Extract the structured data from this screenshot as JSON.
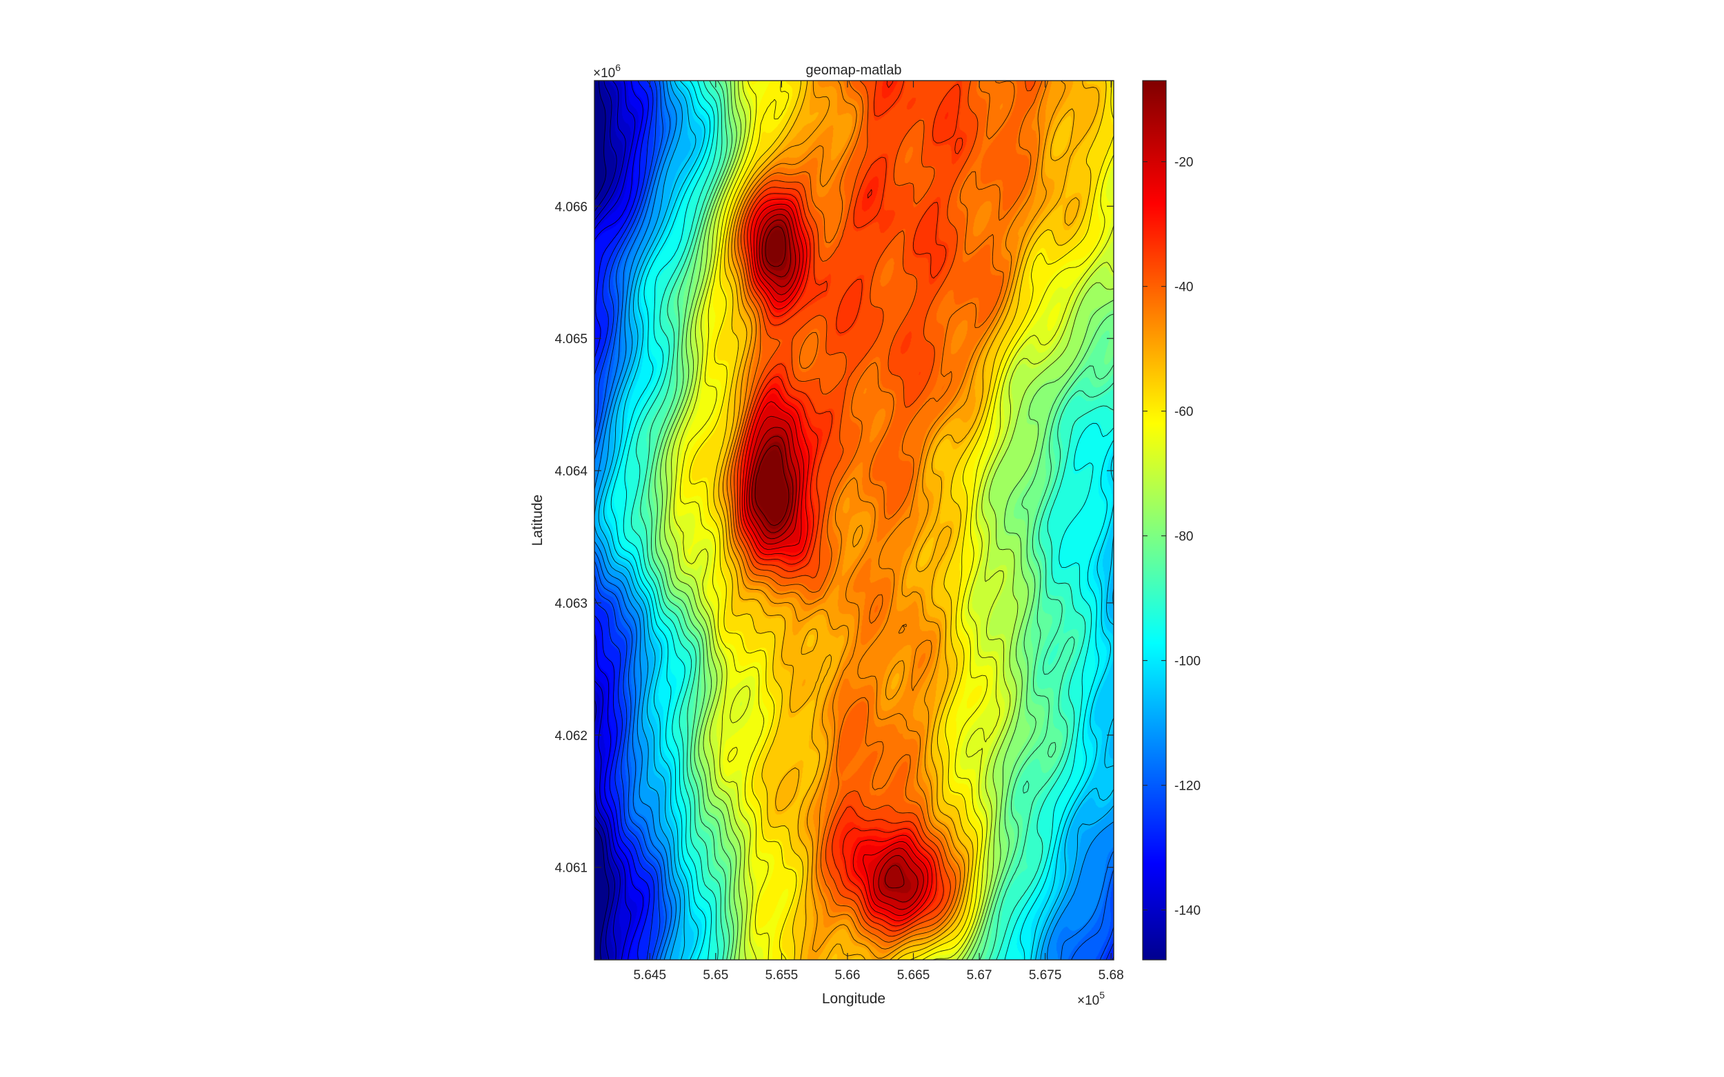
{
  "title": "geomap-matlab",
  "x_axis": {
    "label": "Longitude",
    "exponent_label": "×10",
    "exponent": "5",
    "ticks": [
      5.645,
      5.65,
      5.655,
      5.66,
      5.665,
      5.67,
      5.675,
      5.68
    ],
    "tick_labels": [
      "5.645",
      "5.65",
      "5.655",
      "5.66",
      "5.665",
      "5.67",
      "5.675",
      "5.68"
    ],
    "range": [
      5.6408,
      5.6802
    ]
  },
  "y_axis": {
    "label": "Latitude",
    "exponent_label": "×10",
    "exponent": "6",
    "ticks": [
      4.061,
      4.062,
      4.063,
      4.064,
      4.065,
      4.066
    ],
    "tick_labels": [
      "4.061",
      "4.062",
      "4.063",
      "4.064",
      "4.065",
      "4.066"
    ],
    "range": [
      4.0603,
      4.06695
    ]
  },
  "colorbar": {
    "colormap": "jet",
    "range": [
      -148,
      -7
    ],
    "ticks": [
      -20,
      -40,
      -60,
      -80,
      -100,
      -120,
      -140
    ],
    "tick_labels": [
      "-20",
      "-40",
      "-60",
      "-80",
      "-100",
      "-120",
      "-140"
    ]
  },
  "chart_data": {
    "type": "heatmap",
    "subtype": "filled contour map",
    "title": "geomap-matlab",
    "xlabel": "Longitude",
    "ylabel": "Latitude",
    "xlim": [
      564080,
      568020
    ],
    "ylim": [
      4060300,
      4066950
    ],
    "zlim": [
      -148,
      -7
    ],
    "colormap": "jet",
    "contour_lines": true,
    "grid": false,
    "features": [
      {
        "feature": "shallow peak",
        "x": 565350,
        "y": 4065650,
        "z": -10
      },
      {
        "feature": "shallow peak",
        "x": 565350,
        "y": 4063950,
        "z": -10
      },
      {
        "feature": "shallow peak",
        "x": 566700,
        "y": 4060850,
        "z": -10
      },
      {
        "feature": "deep basin",
        "x": 564150,
        "y": 4060450,
        "z": -145
      }
    ]
  }
}
